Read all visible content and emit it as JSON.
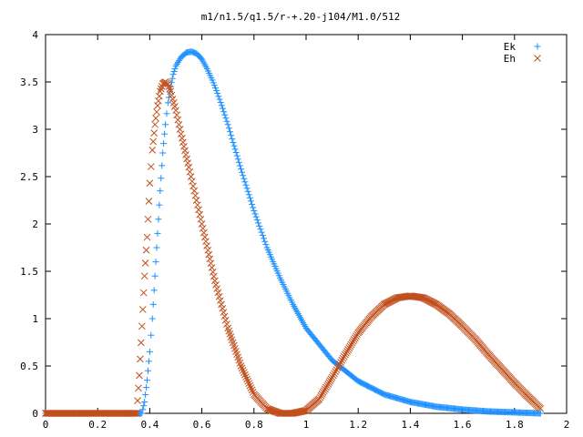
{
  "chart_data": {
    "type": "scatter",
    "title": "m1/n1.5/q1.5/r-+.20-j104/M1.0/512",
    "xlabel": "",
    "ylabel": "",
    "xlim": [
      0,
      2
    ],
    "ylim": [
      0,
      4
    ],
    "grid": false,
    "legend_position": "top-right",
    "x_ticks": [
      "0",
      "0.2",
      "0.4",
      "0.6",
      "0.8",
      "1",
      "1.2",
      "1.4",
      "1.6",
      "1.8",
      "2"
    ],
    "y_ticks": [
      "0",
      "0.5",
      "1",
      "1.5",
      "2",
      "2.5",
      "3",
      "3.5",
      "4"
    ],
    "series": [
      {
        "name": "Ek",
        "marker": "plus",
        "color": "#1e90ff",
        "x": [
          0.0,
          0.05,
          0.1,
          0.15,
          0.2,
          0.25,
          0.3,
          0.35,
          0.37,
          0.38,
          0.39,
          0.4,
          0.41,
          0.42,
          0.43,
          0.44,
          0.45,
          0.46,
          0.47,
          0.48,
          0.49,
          0.5,
          0.52,
          0.54,
          0.56,
          0.58,
          0.6,
          0.62,
          0.64,
          0.66,
          0.68,
          0.7,
          0.72,
          0.75,
          0.8,
          0.85,
          0.9,
          0.95,
          1.0,
          1.1,
          1.2,
          1.3,
          1.4,
          1.5,
          1.6,
          1.7,
          1.8,
          1.9
        ],
        "y": [
          0,
          0,
          0,
          0,
          0,
          0,
          0,
          0,
          0,
          0.12,
          0.35,
          0.65,
          1.0,
          1.45,
          1.9,
          2.35,
          2.75,
          3.05,
          3.28,
          3.45,
          3.58,
          3.67,
          3.76,
          3.81,
          3.82,
          3.8,
          3.74,
          3.64,
          3.52,
          3.38,
          3.22,
          3.05,
          2.86,
          2.58,
          2.14,
          1.75,
          1.43,
          1.15,
          0.9,
          0.56,
          0.34,
          0.2,
          0.12,
          0.07,
          0.04,
          0.02,
          0.01,
          0.0
        ]
      },
      {
        "name": "Eh",
        "marker": "cross",
        "color": "#c0501e",
        "x": [
          0.0,
          0.05,
          0.1,
          0.15,
          0.2,
          0.25,
          0.3,
          0.35,
          0.36,
          0.37,
          0.38,
          0.39,
          0.4,
          0.41,
          0.42,
          0.43,
          0.44,
          0.45,
          0.46,
          0.47,
          0.48,
          0.5,
          0.52,
          0.55,
          0.6,
          0.65,
          0.7,
          0.75,
          0.8,
          0.85,
          0.9,
          0.95,
          1.0,
          1.05,
          1.1,
          1.15,
          1.2,
          1.25,
          1.3,
          1.35,
          1.4,
          1.45,
          1.5,
          1.55,
          1.6,
          1.65,
          1.7,
          1.75,
          1.8,
          1.85,
          1.9
        ],
        "y": [
          0,
          0,
          0,
          0,
          0,
          0,
          0,
          0,
          0.4,
          0.92,
          1.45,
          1.86,
          2.43,
          2.78,
          3.05,
          3.25,
          3.4,
          3.48,
          3.5,
          3.48,
          3.4,
          3.2,
          2.95,
          2.6,
          2.0,
          1.4,
          0.9,
          0.5,
          0.2,
          0.05,
          0.0,
          0.0,
          0.03,
          0.15,
          0.38,
          0.62,
          0.85,
          1.02,
          1.15,
          1.22,
          1.24,
          1.22,
          1.15,
          1.05,
          0.92,
          0.78,
          0.62,
          0.47,
          0.32,
          0.18,
          0.05
        ]
      }
    ]
  }
}
